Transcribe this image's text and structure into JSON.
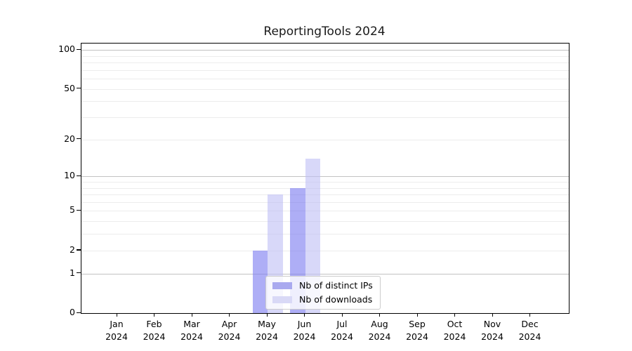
{
  "title": "ReportingTools 2024",
  "legend": {
    "items": [
      {
        "label": "Nb of distinct IPs",
        "color": "#a9a9ef"
      },
      {
        "label": "Nb of downloads",
        "color": "#d9d9f6"
      }
    ]
  },
  "chart_data": {
    "type": "bar",
    "title": "ReportingTools 2024",
    "scale": "log1p",
    "categories": [
      "Jan 2024",
      "Feb 2024",
      "Mar 2024",
      "Apr 2024",
      "May 2024",
      "Jun 2024",
      "Jul 2024",
      "Aug 2024",
      "Sep 2024",
      "Oct 2024",
      "Nov 2024",
      "Dec 2024"
    ],
    "series": [
      {
        "name": "Nb of distinct IPs",
        "color": "rgba(120,120,240,0.6)",
        "values": [
          0,
          0,
          0,
          0,
          2,
          8,
          0,
          0,
          0,
          0,
          0,
          0
        ]
      },
      {
        "name": "Nb of downloads",
        "color": "rgba(190,190,245,0.6)",
        "values": [
          0,
          0,
          0,
          0,
          7,
          14,
          0,
          0,
          0,
          0,
          0,
          0
        ]
      }
    ],
    "y_ticks": [
      0,
      1,
      2,
      5,
      10,
      20,
      50,
      100
    ],
    "grid_major": [
      1,
      10,
      100
    ],
    "grid_minor": [
      2,
      3,
      4,
      5,
      6,
      7,
      8,
      9,
      20,
      30,
      40,
      50,
      60,
      70,
      80,
      90
    ],
    "ylim": [
      0,
      112
    ],
    "xlabel": "",
    "ylabel": "",
    "grid": "on",
    "legend_position": "lower center (inside axes)"
  }
}
